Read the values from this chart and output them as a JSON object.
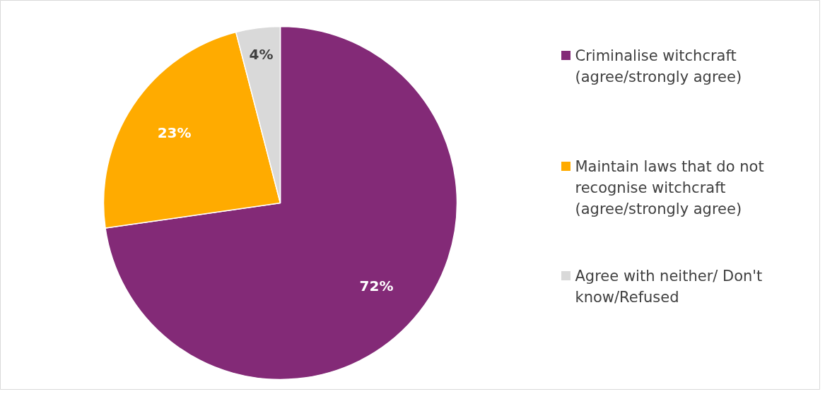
{
  "chart_data": {
    "type": "pie",
    "categories": [
      "Criminalise witchcraft (agree/strongly agree)",
      "Maintain laws that do not recognise witchcraft (agree/strongly agree)",
      "Agree with neither/ Don't know/Refused"
    ],
    "values": [
      72,
      23,
      4
    ],
    "colors": [
      "#832a77",
      "#ffab00",
      "#d9d9d9"
    ],
    "value_labels": [
      "72%",
      "23%",
      "4%"
    ],
    "legend": "right"
  }
}
